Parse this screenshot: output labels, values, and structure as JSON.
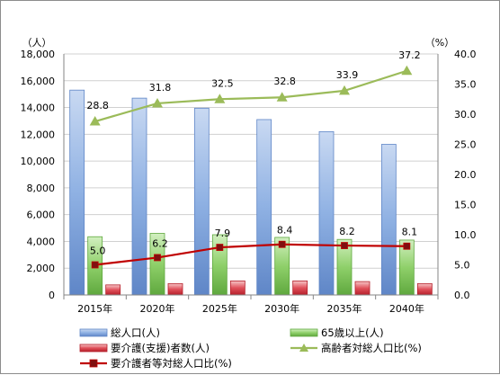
{
  "chart_data": {
    "type": "bar",
    "categories": [
      "2015年",
      "2020年",
      "2025年",
      "2030年",
      "2035年",
      "2040年"
    ],
    "left_axis": {
      "unit": "（人）",
      "ylim": [
        0,
        18000
      ],
      "ticks": [
        "0",
        "2,000",
        "4,000",
        "6,000",
        "8,000",
        "10,000",
        "12,000",
        "14,000",
        "16,000",
        "18,000"
      ]
    },
    "right_axis": {
      "unit": "（%）",
      "ylim": [
        0,
        40
      ],
      "ticks": [
        "0.0",
        "5.0",
        "10.0",
        "15.0",
        "20.0",
        "25.0",
        "30.0",
        "35.0",
        "40.0"
      ]
    },
    "grid": true,
    "legend_position": "bottom",
    "series": [
      {
        "name": "総人口(人)",
        "kind": "bar",
        "axis": "left",
        "color": "#8fb1e3",
        "values": [
          15300,
          14700,
          13950,
          13100,
          12200,
          11250
        ]
      },
      {
        "name": "65歳以上(人)",
        "kind": "bar",
        "axis": "left",
        "color": "#8fd06a",
        "values": [
          4350,
          4600,
          4500,
          4300,
          4150,
          4100
        ]
      },
      {
        "name": "要介護(支援)者数(人)",
        "kind": "bar",
        "axis": "left",
        "color": "#e0505a",
        "values": [
          750,
          850,
          1050,
          1050,
          1000,
          850
        ]
      },
      {
        "name": "高齢者対総人口比(%)",
        "kind": "line",
        "axis": "right",
        "color": "#9bbb59",
        "marker": "triangle",
        "values": [
          28.8,
          31.8,
          32.5,
          32.8,
          33.9,
          37.2
        ],
        "labels": [
          "28.8",
          "31.8",
          "32.5",
          "32.8",
          "33.9",
          "37.2"
        ]
      },
      {
        "name": "要介護者等対総人口比(%)",
        "kind": "line",
        "axis": "right",
        "color": "#c00000",
        "marker": "square",
        "values": [
          5.0,
          6.2,
          7.9,
          8.4,
          8.2,
          8.1
        ],
        "labels": [
          "5.0",
          "6.2",
          "7.9",
          "8.4",
          "8.2",
          "8.1"
        ]
      }
    ]
  }
}
